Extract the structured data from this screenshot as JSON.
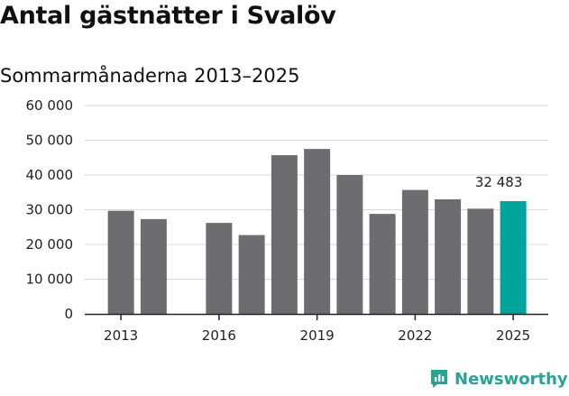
{
  "title": "Antal gästnätter i Svalöv",
  "subtitle": "Sommarmånaderna 2013–2025",
  "brand": {
    "name": "Newsworthy",
    "color": "#2aa396"
  },
  "colors": {
    "bar": "#6d6c71",
    "highlight": "#00a49a",
    "grid": "#d9d9d9",
    "axis": "#222222"
  },
  "chart_data": {
    "type": "bar",
    "x": [
      2013,
      2014,
      2015,
      2016,
      2017,
      2018,
      2019,
      2020,
      2021,
      2022,
      2023,
      2024,
      2025
    ],
    "values": [
      29700,
      27300,
      null,
      26200,
      22700,
      45700,
      47500,
      40000,
      28800,
      35700,
      33000,
      30300,
      32483
    ],
    "highlight_index": 12,
    "data_labels": [
      {
        "index": 12,
        "text": "32 483"
      }
    ],
    "xticks": [
      "2013",
      "2016",
      "2019",
      "2022",
      "2025"
    ],
    "xtick_values": [
      2013,
      2016,
      2019,
      2022,
      2025
    ],
    "yticks": [
      "0",
      "10 000",
      "20 000",
      "30 000",
      "40 000",
      "50 000",
      "60 000"
    ],
    "ytick_values": [
      0,
      10000,
      20000,
      30000,
      40000,
      50000,
      60000
    ],
    "ylim": [
      0,
      60000
    ],
    "grid": true,
    "legend": "none"
  }
}
